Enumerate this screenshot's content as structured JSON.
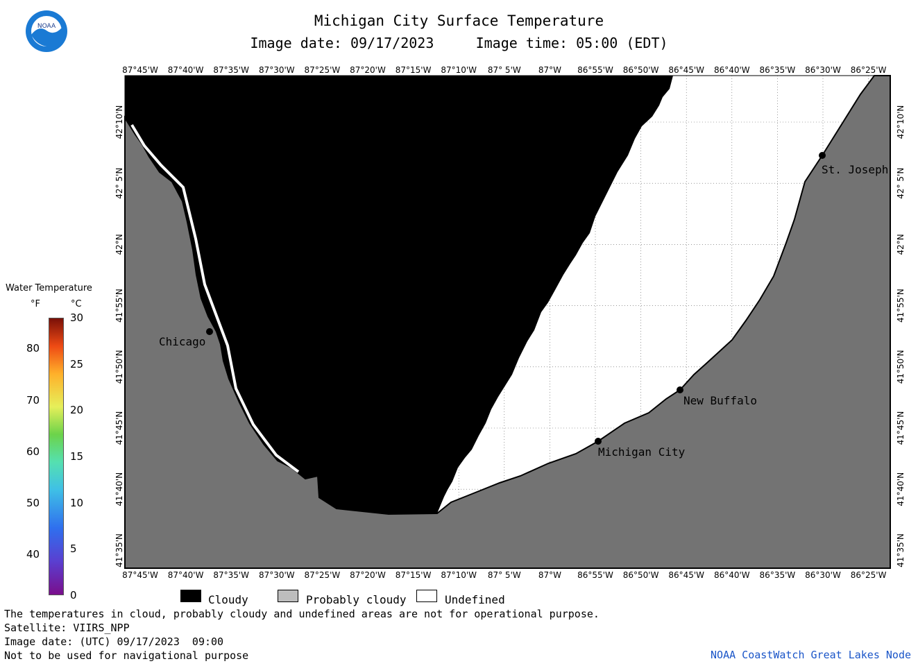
{
  "title": "Michigan City Surface Temperature",
  "subtitle": "Image date: 09/17/2023     Image time: 05:00 (EDT)",
  "logo_text": "NOAA",
  "lon_labels": [
    "87°45'W",
    "87°40'W",
    "87°35'W",
    "87°30'W",
    "87°25'W",
    "87°20'W",
    "87°15'W",
    "87°10'W",
    "87° 5'W",
    "87°W",
    "86°55'W",
    "86°50'W",
    "86°45'W",
    "86°40'W",
    "86°35'W",
    "86°30'W",
    "86°25'W"
  ],
  "lat_labels": [
    "42°10'N",
    "42° 5'N",
    "42°N",
    "41°55'N",
    "41°50'N",
    "41°45'N",
    "41°40'N",
    "41°35'N"
  ],
  "places": [
    {
      "name": "Chicago"
    },
    {
      "name": "Michigan City"
    },
    {
      "name": "New Buffalo"
    },
    {
      "name": "St. Joseph"
    }
  ],
  "legend": {
    "title": "Water Temperature",
    "unit_f": "°F",
    "unit_c": "°C",
    "f_ticks": [
      "40",
      "50",
      "60",
      "70",
      "80"
    ],
    "c_ticks": [
      "0",
      "5",
      "10",
      "15",
      "20",
      "25",
      "30"
    ]
  },
  "key": [
    {
      "label": "Cloudy",
      "color": "#000000"
    },
    {
      "label": "Probably cloudy",
      "color": "#bdbdbd"
    },
    {
      "label": "Undefined",
      "color": "#ffffff"
    }
  ],
  "notes": {
    "line1": "The temperatures in cloud, probably cloudy and undefined areas are not for operational purpose.",
    "line2": "Satellite: VIIRS_NPP",
    "line3": "Image date: (UTC) 09/17/2023  09:00",
    "line4": "Not to be used for navigational purpose"
  },
  "credit": "NOAA CoastWatch Great Lakes Node",
  "colors": {
    "land": "#737373",
    "cloud": "#000000",
    "undefined": "#ffffff"
  }
}
